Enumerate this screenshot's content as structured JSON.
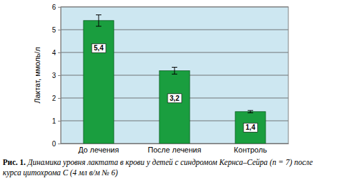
{
  "chart_data": {
    "type": "bar",
    "title": "Рис. 1.",
    "subtitle": "Динамика уровня лактата в крови у детей с синдромом Кернса–Сейра (n = 7) после курса цитохрома С (4 мл в/м № 6)",
    "y_label": "Лактат, ммоль/л",
    "categories": [
      "До лечения",
      "После лечения",
      "Контроль"
    ],
    "values": [
      5.4,
      3.2,
      1.4
    ],
    "value_labels": [
      "5,4",
      "3,2",
      "1,4"
    ],
    "errors": [
      0.25,
      0.15,
      0.05
    ],
    "color": "#1a9e3f",
    "ylim": [
      0,
      6
    ],
    "yticks": [
      0,
      1,
      2,
      3,
      4,
      5,
      6
    ],
    "grid": true,
    "data_labels": true
  }
}
